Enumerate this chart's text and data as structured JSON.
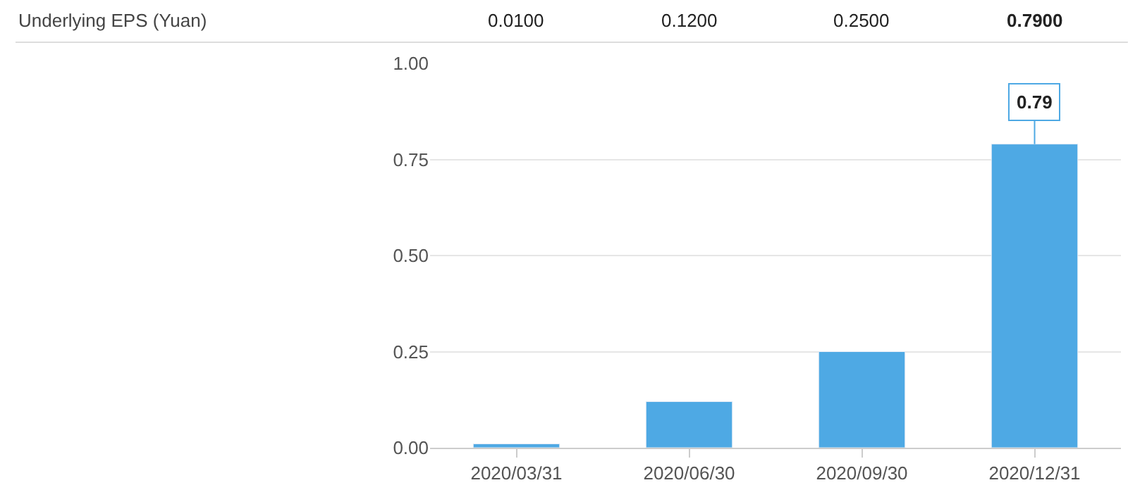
{
  "chart_data": {
    "type": "bar",
    "title": "Underlying EPS (Yuan)",
    "categories": [
      "2020/03/31",
      "2020/06/30",
      "2020/09/30",
      "2020/12/31"
    ],
    "values": [
      0.01,
      0.12,
      0.25,
      0.79
    ],
    "value_labels": [
      "0.0100",
      "0.1200",
      "0.2500",
      "0.7900"
    ],
    "color": "#4ea9e4",
    "ylim": [
      0,
      1
    ],
    "yticks": [
      {
        "value": 0,
        "label": "0.00"
      },
      {
        "value": 0.25,
        "label": "0.25"
      },
      {
        "value": 0.5,
        "label": "0.50"
      },
      {
        "value": 0.75,
        "label": "0.75"
      },
      {
        "value": 1,
        "label": "1.00"
      }
    ],
    "grid": "y",
    "annotations": [
      {
        "text": "0.79",
        "x": "2020/12/31",
        "y": 0.79
      }
    ]
  }
}
